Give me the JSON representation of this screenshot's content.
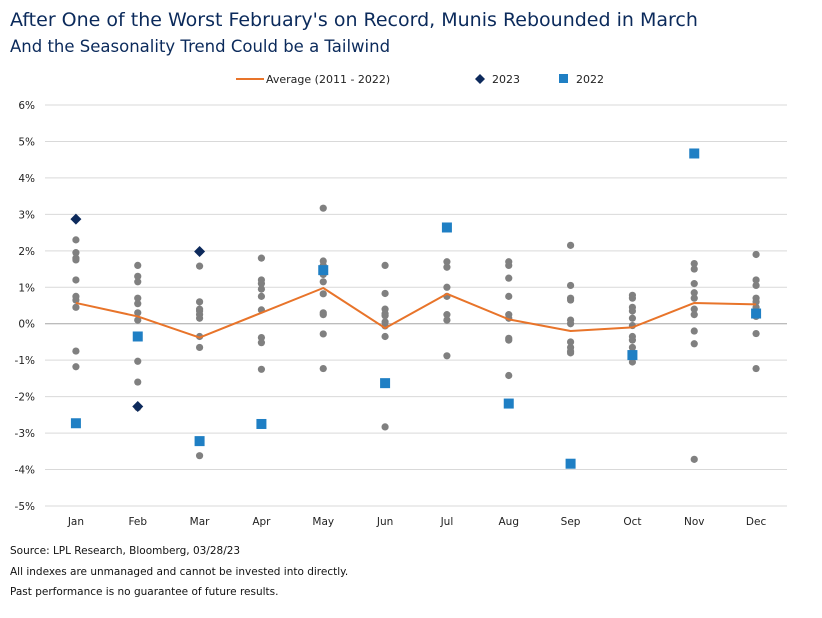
{
  "header": {
    "title": "After One of the Worst February's on Record, Munis Rebounded in March",
    "subtitle": "And the Seasonality Trend Could be a Tailwind"
  },
  "footer": {
    "source": "Source: LPL Research, Bloomberg, 03/28/23",
    "disclaimer1": "All indexes are unmanaged and cannot be invested into directly.",
    "disclaimer2": "Past performance is no guarantee of future results."
  },
  "colors": {
    "average": "#e8742a",
    "y2023": "#0d2a5c",
    "y2022": "#1f7fc4",
    "history": "#808080",
    "grid": "#d9d9d9",
    "title": "#0b2a5b"
  },
  "chart_data": {
    "type": "scatter",
    "categories": [
      "Jan",
      "Feb",
      "Mar",
      "Apr",
      "May",
      "Jun",
      "Jul",
      "Aug",
      "Sep",
      "Oct",
      "Nov",
      "Dec"
    ],
    "ylim": [
      -5,
      6
    ],
    "yticks": [
      -5,
      -4,
      -3,
      -2,
      -1,
      0,
      1,
      2,
      3,
      4,
      5,
      6
    ],
    "ytick_labels": [
      "-5%",
      "-4%",
      "-3%",
      "-2%",
      "-1%",
      "0%",
      "1%",
      "2%",
      "3%",
      "4%",
      "5%",
      "6%"
    ],
    "grid": true,
    "legend_position": "top",
    "legend": [
      "Average (2011 - 2022)",
      "2023",
      "2022"
    ],
    "series": [
      {
        "name": "Average (2011 - 2022)",
        "kind": "line",
        "values": [
          0.57,
          0.2,
          -0.38,
          0.3,
          0.98,
          -0.12,
          0.82,
          0.12,
          -0.2,
          -0.1,
          0.57,
          0.53
        ]
      },
      {
        "name": "2023",
        "kind": "diamond",
        "values": [
          2.87,
          -2.27,
          1.98,
          null,
          null,
          null,
          null,
          null,
          null,
          null,
          null,
          null
        ]
      },
      {
        "name": "2022",
        "kind": "square",
        "values": [
          -2.73,
          -0.35,
          -3.22,
          -2.75,
          1.47,
          -1.63,
          2.64,
          -2.19,
          -3.84,
          -0.86,
          4.67,
          0.28
        ]
      }
    ],
    "history_points": [
      [
        2.3,
        1.95,
        1.8,
        1.75,
        1.2,
        0.75,
        0.65,
        0.45,
        -0.75,
        -1.18
      ],
      [
        1.6,
        1.3,
        1.15,
        0.7,
        0.55,
        0.3,
        0.1,
        -1.03,
        -1.6,
        -2.3
      ],
      [
        1.58,
        0.6,
        0.4,
        0.35,
        0.25,
        0.15,
        -0.35,
        -0.65,
        -3.62
      ],
      [
        1.8,
        1.2,
        1.1,
        0.95,
        0.75,
        0.38,
        -0.38,
        -0.52,
        -1.25
      ],
      [
        3.17,
        1.72,
        1.6,
        1.35,
        1.15,
        0.82,
        0.3,
        0.25,
        -0.28,
        -1.23
      ],
      [
        1.6,
        0.83,
        0.4,
        0.28,
        0.22,
        0.05,
        -0.06,
        -0.35,
        -2.83
      ],
      [
        1.7,
        1.55,
        1.0,
        0.75,
        0.25,
        0.1,
        -0.88
      ],
      [
        1.7,
        1.6,
        1.25,
        0.75,
        0.25,
        0.15,
        -0.4,
        -0.45,
        -1.42
      ],
      [
        2.15,
        1.05,
        0.7,
        0.65,
        0.1,
        0.0,
        -0.5,
        -0.65,
        -0.75,
        -0.8
      ],
      [
        0.78,
        0.7,
        0.45,
        0.35,
        0.15,
        -0.05,
        -0.35,
        -0.45,
        -0.65,
        -0.78,
        -1.05
      ],
      [
        1.65,
        1.5,
        1.1,
        0.85,
        0.7,
        0.4,
        0.25,
        -0.2,
        -0.55,
        -3.72
      ],
      [
        1.9,
        1.2,
        1.05,
        0.7,
        0.6,
        0.45,
        0.35,
        0.2,
        -0.27,
        -1.23
      ]
    ]
  }
}
